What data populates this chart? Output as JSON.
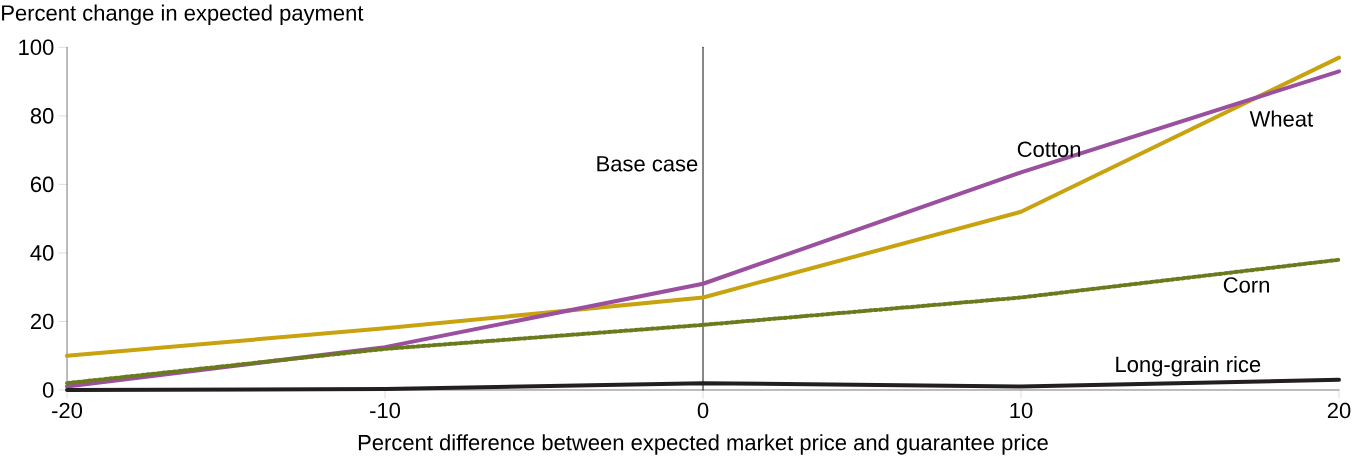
{
  "chart_data": {
    "type": "line",
    "xlabel": "Percent difference between expected market price and guarantee price",
    "ylabel": "Percent change in expected payment",
    "x": [
      -20,
      -10,
      0,
      10,
      20
    ],
    "series": [
      {
        "name": "Wheat",
        "color": "#c9a20f",
        "values": [
          10,
          18,
          27,
          52,
          97
        ],
        "line_style": "solid"
      },
      {
        "name": "Cotton",
        "color": "#9a4f9f",
        "values": [
          1,
          12.5,
          31,
          63.5,
          93
        ],
        "line_style": "solid"
      },
      {
        "name": "Corn",
        "color": "#6b7a1c",
        "values": [
          2,
          12,
          19,
          27,
          38
        ],
        "line_style": "dotted"
      },
      {
        "name": "Long-grain rice",
        "color": "#231f20",
        "values": [
          0,
          0.3,
          2,
          1,
          3
        ],
        "line_style": "solid"
      }
    ],
    "xlim": [
      -20,
      20
    ],
    "ylim": [
      0,
      100
    ],
    "xticks": [
      -20,
      -10,
      0,
      10,
      20
    ],
    "yticks": [
      0,
      20,
      40,
      60,
      80,
      100
    ],
    "ref_lines": [
      {
        "axis": "x",
        "value": 0,
        "label": "Base case",
        "color": "#231f20"
      }
    ],
    "grid": false,
    "legend": false,
    "marker": "none"
  }
}
